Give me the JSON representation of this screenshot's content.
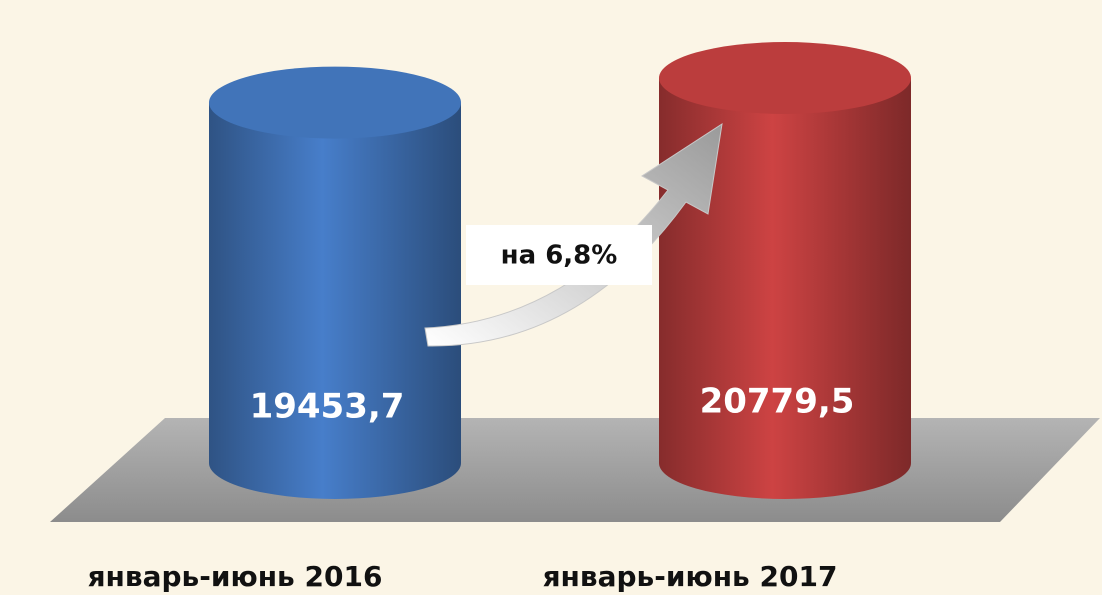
{
  "chart_data": {
    "type": "bar",
    "categories": [
      "январь-июнь 2016",
      "январь-июнь 2017"
    ],
    "values": [
      19453.7,
      20779.5
    ],
    "value_labels": [
      "19453,7",
      "20779,5"
    ],
    "colors": [
      "#3e6eb0",
      "#b23a3a"
    ],
    "annotation": "на 6,8%"
  }
}
